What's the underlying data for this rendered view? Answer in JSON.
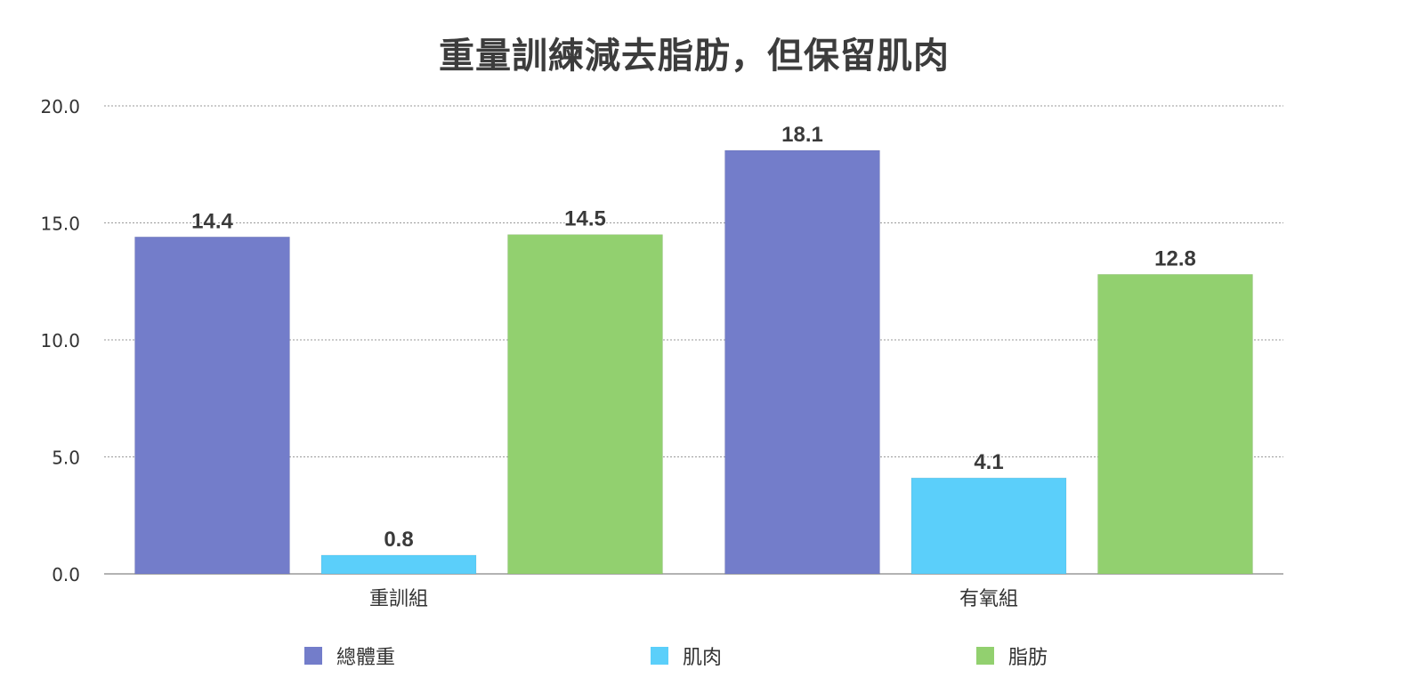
{
  "chart_data": {
    "type": "bar",
    "title": "重量訓練減去脂肪，但保留肌肉",
    "xlabel": "",
    "ylabel": "",
    "ylim": [
      0,
      20
    ],
    "yticks": [
      "0.0",
      "5.0",
      "10.0",
      "15.0",
      "20.0"
    ],
    "categories": [
      "重訓組",
      "有氧組"
    ],
    "series": [
      {
        "name": "總體重",
        "values": [
          14.4,
          18.1
        ],
        "labels": [
          "14.4",
          "18.1"
        ],
        "color": "#737dca"
      },
      {
        "name": "肌肉",
        "values": [
          0.8,
          4.1
        ],
        "labels": [
          "0.8",
          "4.1"
        ],
        "color": "#5bcffa"
      },
      {
        "name": "脂肪",
        "values": [
          14.5,
          12.8
        ],
        "labels": [
          "14.5",
          "12.8"
        ],
        "color": "#92d06f"
      }
    ],
    "grid": true,
    "legend_position": "bottom"
  }
}
